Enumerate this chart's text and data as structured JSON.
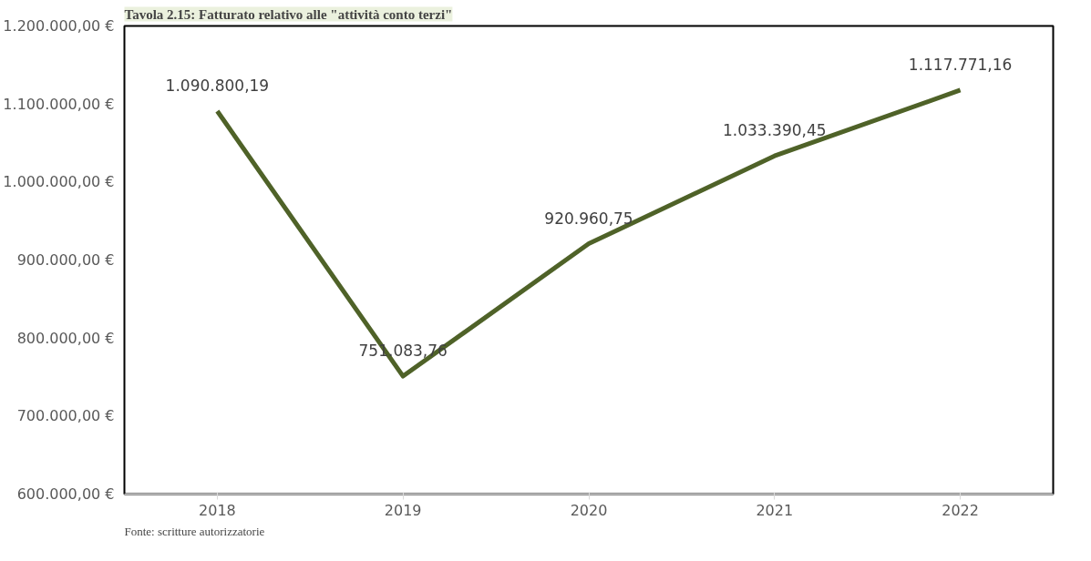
{
  "chart_data": {
    "type": "line",
    "title": "Tavola 2.15: Fatturato relativo alle \"attività conto terzi\"",
    "categories": [
      "2018",
      "2019",
      "2020",
      "2021",
      "2022"
    ],
    "values": [
      1090800.19,
      751083.76,
      920960.75,
      1033390.45,
      1117771.16
    ],
    "value_labels": [
      "1.090.800,19",
      "751.083,76",
      "920.960,75",
      "1.033.390,45",
      "1.117.771,16"
    ],
    "color": "#4f6228",
    "grid": false,
    "marker": "none",
    "line_style": "solid",
    "ylim": [
      600000,
      1200000
    ],
    "yticks": [
      {
        "value": 600000,
        "label": "600.000,00 €"
      },
      {
        "value": 700000,
        "label": "700.000,00 €"
      },
      {
        "value": 800000,
        "label": "800.000,00 €"
      },
      {
        "value": 900000,
        "label": "900.000,00 €"
      },
      {
        "value": 1000000,
        "label": "1.000.000,00 €"
      },
      {
        "value": 1100000,
        "label": "1.100.000,00 €"
      },
      {
        "value": 1200000,
        "label": "1.200.000,00 €"
      }
    ],
    "annotations": [
      "Fonte: scritture autorizzatorie"
    ]
  }
}
